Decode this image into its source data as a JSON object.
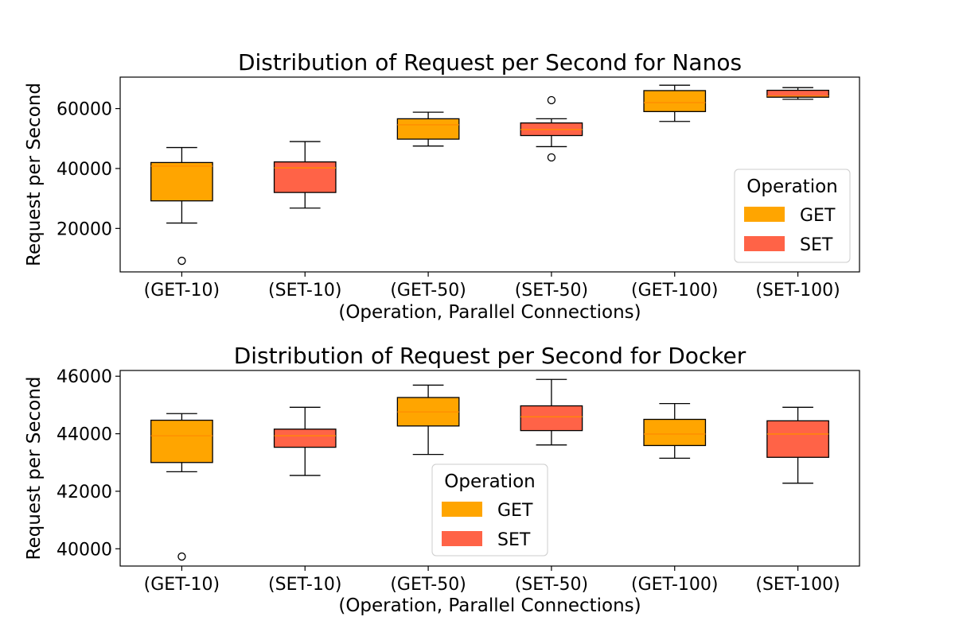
{
  "chart_data": [
    {
      "type": "box",
      "title": "Distribution of Request per Second for Nanos",
      "xlabel": "(Operation, Parallel Connections)",
      "ylabel": "Request per Second",
      "ylim": [
        5500,
        70500
      ],
      "yticks": [
        20000,
        40000,
        60000
      ],
      "legend": {
        "title": "Operation",
        "placement": "lower-right",
        "entries": [
          "GET",
          "SET"
        ]
      },
      "colors": {
        "GET": "#FFA500",
        "SET": "#FF6347"
      },
      "categories": [
        "(GET-10)",
        "(SET-10)",
        "(GET-50)",
        "(SET-50)",
        "(GET-100)",
        "(SET-100)"
      ],
      "boxes": [
        {
          "operation": "GET",
          "whisker_low": 21800,
          "q1": 29200,
          "median": 40800,
          "q3": 42000,
          "whisker_high": 47000,
          "outliers": [
            9200
          ]
        },
        {
          "operation": "SET",
          "whisker_low": 26800,
          "q1": 32000,
          "median": 40200,
          "q3": 42200,
          "whisker_high": 49000,
          "outliers": []
        },
        {
          "operation": "GET",
          "whisker_low": 47500,
          "q1": 49800,
          "median": 54600,
          "q3": 56600,
          "whisker_high": 58800,
          "outliers": []
        },
        {
          "operation": "SET",
          "whisker_low": 47300,
          "q1": 51000,
          "median": 53000,
          "q3": 55200,
          "whisker_high": 56600,
          "outliers": [
            62800,
            43700
          ]
        },
        {
          "operation": "GET",
          "whisker_low": 55700,
          "q1": 59000,
          "median": 62000,
          "q3": 66000,
          "whisker_high": 67800,
          "outliers": []
        },
        {
          "operation": "SET",
          "whisker_low": 63100,
          "q1": 63800,
          "median": 64200,
          "q3": 66100,
          "whisker_high": 67000,
          "outliers": []
        }
      ]
    },
    {
      "type": "box",
      "title": "Distribution of Request per Second for Docker",
      "xlabel": "(Operation, Parallel Connections)",
      "ylabel": "Request per Second",
      "ylim": [
        39400,
        46200
      ],
      "yticks": [
        40000,
        42000,
        44000,
        46000
      ],
      "legend": {
        "title": "Operation",
        "placement": "lower-center",
        "entries": [
          "GET",
          "SET"
        ]
      },
      "colors": {
        "GET": "#FFA500",
        "SET": "#FF6347"
      },
      "categories": [
        "(GET-10)",
        "(SET-10)",
        "(GET-50)",
        "(SET-50)",
        "(GET-100)",
        "(SET-100)"
      ],
      "boxes": [
        {
          "operation": "GET",
          "whisker_low": 42680,
          "q1": 43000,
          "median": 43930,
          "q3": 44470,
          "whisker_high": 44700,
          "outliers": [
            39730
          ]
        },
        {
          "operation": "SET",
          "whisker_low": 42550,
          "q1": 43530,
          "median": 43930,
          "q3": 44160,
          "whisker_high": 44920,
          "outliers": []
        },
        {
          "operation": "GET",
          "whisker_low": 43280,
          "q1": 44270,
          "median": 44760,
          "q3": 45260,
          "whisker_high": 45690,
          "outliers": []
        },
        {
          "operation": "SET",
          "whisker_low": 43610,
          "q1": 44110,
          "median": 44590,
          "q3": 44970,
          "whisker_high": 45890,
          "outliers": []
        },
        {
          "operation": "GET",
          "whisker_low": 43150,
          "q1": 43590,
          "median": 43990,
          "q3": 44500,
          "whisker_high": 45050,
          "outliers": []
        },
        {
          "operation": "SET",
          "whisker_low": 42280,
          "q1": 43180,
          "median": 43990,
          "q3": 44450,
          "whisker_high": 44920,
          "outliers": []
        }
      ]
    }
  ]
}
